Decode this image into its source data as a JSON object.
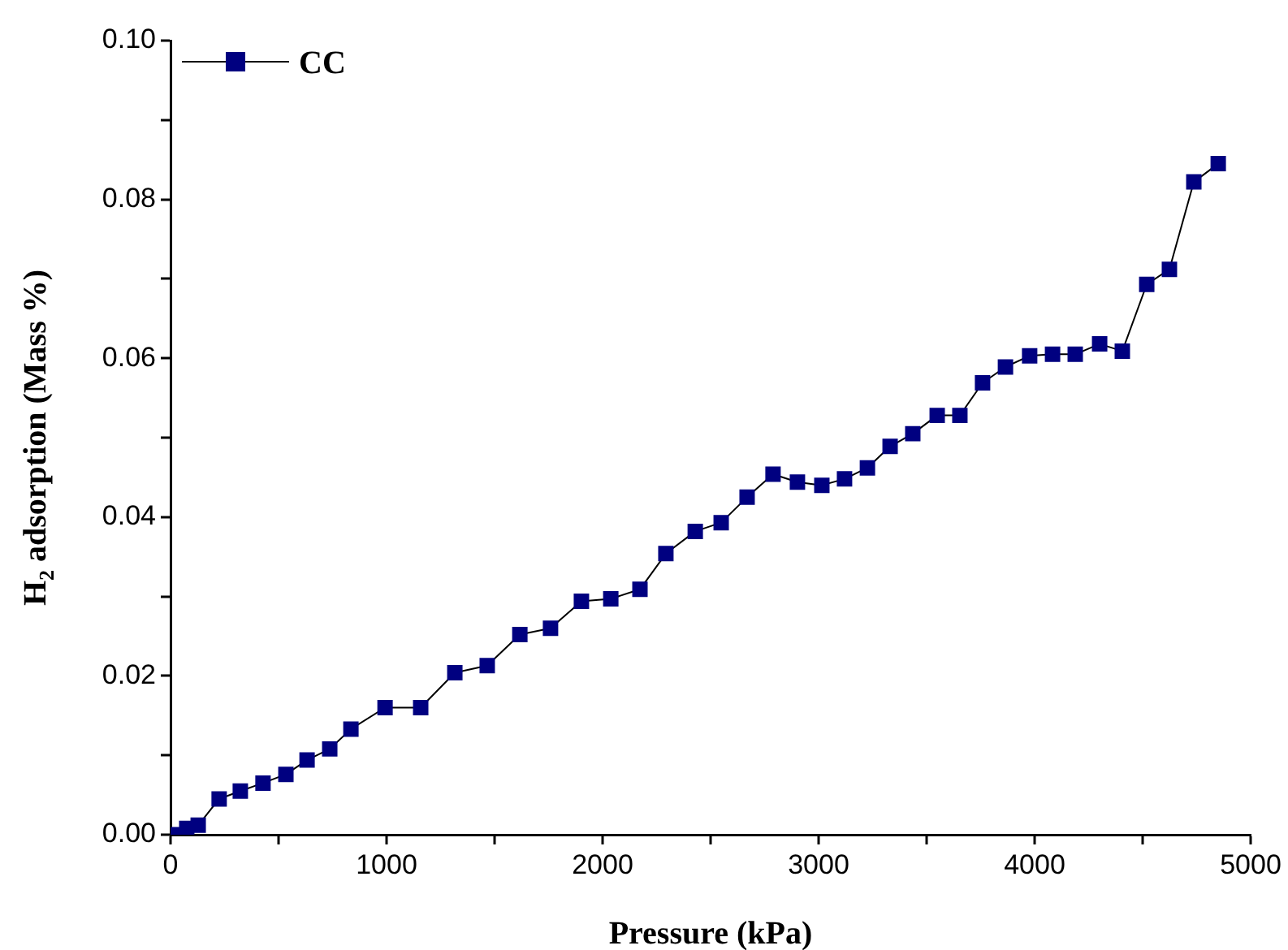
{
  "chart_data": {
    "type": "line",
    "xlabel": "Pressure (kPa)",
    "ylabel": "H$_{2}$ adsorption (Mass %)",
    "xlim": [
      0,
      5000
    ],
    "ylim": [
      0,
      0.1
    ],
    "xticks": [
      0,
      {
        "value": 500,
        "label": null
      },
      1000,
      {
        "value": 1500,
        "label": null
      },
      2000,
      {
        "value": 2500,
        "label": null
      },
      3000,
      {
        "value": 3500,
        "label": null
      },
      4000,
      {
        "value": 4500,
        "label": null
      },
      5000
    ],
    "yticks": [
      {
        "value": 0,
        "label": "0.00"
      },
      {
        "value": 0.01,
        "label": null
      },
      {
        "value": 0.02,
        "label": "0.02"
      },
      {
        "value": 0.03,
        "label": null
      },
      {
        "value": 0.04,
        "label": "0.04"
      },
      {
        "value": 0.05,
        "label": null
      },
      {
        "value": 0.06,
        "label": "0.06"
      },
      {
        "value": 0.07,
        "label": null
      },
      {
        "value": 0.08,
        "label": "0.08"
      },
      {
        "value": 0.09,
        "label": null
      },
      {
        "value": 0.1,
        "label": "0.10"
      }
    ],
    "grid": false,
    "legend": "top left",
    "marker": "square",
    "line_style": "solid",
    "series": [
      {
        "name": "CC",
        "color": "#000080",
        "x": [
          15,
          75,
          128,
          225,
          323,
          428,
          534,
          632,
          737,
          835,
          993,
          1158,
          1316,
          1466,
          1617,
          1759,
          1902,
          2038,
          2173,
          2293,
          2429,
          2549,
          2669,
          2789,
          2902,
          3015,
          3120,
          3226,
          3331,
          3436,
          3549,
          3654,
          3759,
          3865,
          3977,
          4083,
          4188,
          4301,
          4406,
          4519,
          4624,
          4737,
          4850
        ],
        "values": [
          0.0,
          0.0008,
          0.0012,
          0.0045,
          0.0055,
          0.0065,
          0.0076,
          0.0094,
          0.0108,
          0.0133,
          0.016,
          0.016,
          0.0204,
          0.0213,
          0.0252,
          0.026,
          0.0294,
          0.0297,
          0.0309,
          0.0354,
          0.0382,
          0.0393,
          0.0425,
          0.0454,
          0.0444,
          0.044,
          0.0448,
          0.0462,
          0.0489,
          0.0505,
          0.0528,
          0.0528,
          0.0569,
          0.0589,
          0.0603,
          0.0605,
          0.0605,
          0.0618,
          0.0609,
          0.0693,
          0.0712,
          0.0822,
          0.0845
        ]
      }
    ]
  }
}
